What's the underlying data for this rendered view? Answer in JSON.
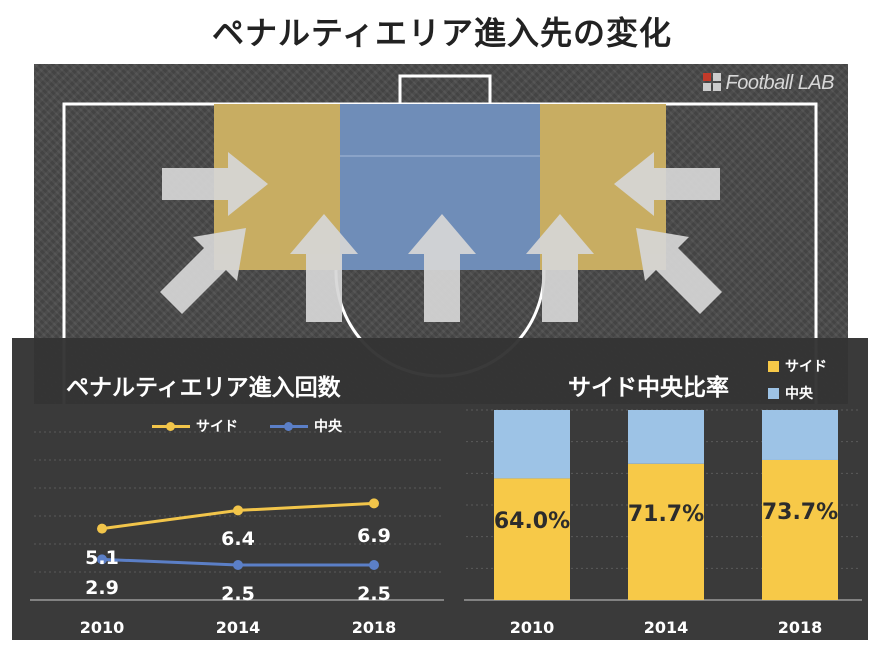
{
  "page": {
    "title": "ペナルティエリア進入先の変化"
  },
  "logo": {
    "text": "Football LAB"
  },
  "colors": {
    "side": "#f7c948",
    "center": "#9dc3e6",
    "side_line": "#f2c54a",
    "center_line": "#5b7fc7",
    "zone_side": "#c8ad62",
    "zone_center": "#6f8db8",
    "arrow": "#d6d6d6"
  },
  "left_panel": {
    "title": "ペナルティエリア進入回数",
    "legend": {
      "side": "サイド",
      "center": "中央"
    }
  },
  "right_panel": {
    "title": "サイド中央比率",
    "legend": {
      "side": "サイド",
      "center": "中央"
    }
  },
  "chart_data": [
    {
      "type": "line",
      "title": "ペナルティエリア進入回数",
      "categories": [
        "2010",
        "2014",
        "2018"
      ],
      "series": [
        {
          "name": "サイド",
          "values": [
            5.1,
            6.4,
            6.9
          ],
          "labels": [
            "5.1",
            "6.4",
            "6.9"
          ]
        },
        {
          "name": "中央",
          "values": [
            2.9,
            2.5,
            2.5
          ],
          "labels": [
            "2.9",
            "2.5",
            "2.5"
          ]
        }
      ],
      "ylim": [
        0,
        12
      ],
      "legend": "top",
      "grid": true
    },
    {
      "type": "bar",
      "stacked": true,
      "title": "サイド中央比率",
      "categories": [
        "2010",
        "2014",
        "2018"
      ],
      "series": [
        {
          "name": "サイド",
          "values": [
            64.0,
            71.7,
            73.7
          ],
          "labels": [
            "64.0%",
            "71.7%",
            "73.7%"
          ]
        },
        {
          "name": "中央",
          "values": [
            36.0,
            28.3,
            26.3
          ]
        }
      ],
      "ylim": [
        0,
        100
      ],
      "legend": "top-right",
      "grid": true
    }
  ]
}
